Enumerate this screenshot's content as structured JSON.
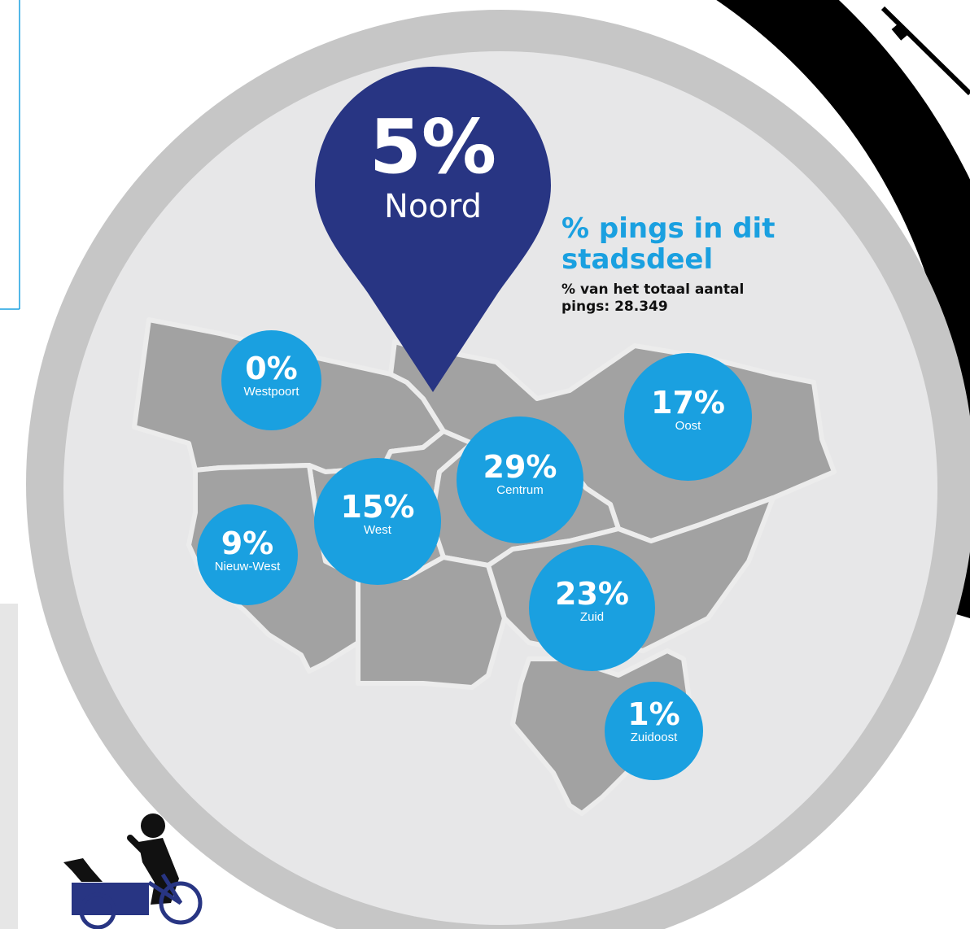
{
  "highlight": {
    "value": "5%",
    "district": "Noord",
    "color": "#283583"
  },
  "legend": {
    "title": "% pings in dit stadsdeel",
    "subtitle": "% van het totaal aantal pings: 28.349",
    "color": "#1aa0e0"
  },
  "districts": [
    {
      "value": "0%",
      "name": "Westpoort"
    },
    {
      "value": "17%",
      "name": "Oost"
    },
    {
      "value": "29%",
      "name": "Centrum"
    },
    {
      "value": "15%",
      "name": "West"
    },
    {
      "value": "9%",
      "name": "Nieuw-West"
    },
    {
      "value": "23%",
      "name": "Zuid"
    },
    {
      "value": "1%",
      "name": "Zuidoost"
    }
  ],
  "colors": {
    "bubble": "#1aa0e0",
    "map": "#a2a2a2",
    "ring": "#c6c6c6",
    "disc": "#e7e7e8",
    "cyclist": "#283583",
    "frame": "#1aa0e0"
  }
}
